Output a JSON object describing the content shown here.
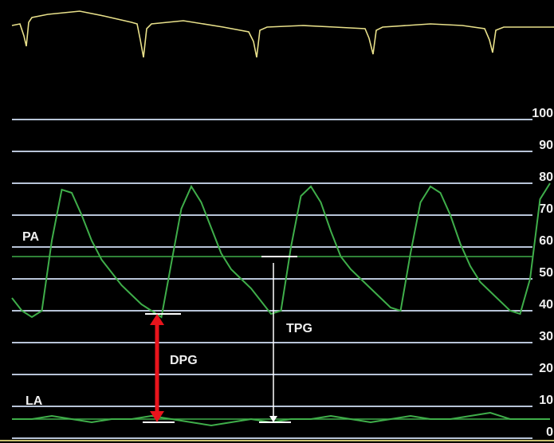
{
  "chart_data": {
    "type": "line",
    "ylim": [
      0,
      100
    ],
    "yticks": [
      0,
      10,
      20,
      30,
      40,
      50,
      60,
      70,
      80,
      90,
      100
    ],
    "grid": true,
    "series": [
      {
        "name": "PA",
        "color": "#3fae4a",
        "mean": 57,
        "values": [
          44,
          40,
          38,
          40,
          62,
          78,
          77,
          70,
          62,
          56,
          52,
          48,
          45,
          42,
          40,
          38,
          55,
          72,
          79,
          74,
          66,
          58,
          53,
          50,
          47,
          43,
          39,
          40,
          60,
          76,
          79,
          74,
          65,
          57,
          53,
          50,
          47,
          44,
          41,
          40,
          58,
          74,
          79,
          77,
          70,
          61,
          54,
          49,
          46,
          43,
          40,
          39,
          50,
          75,
          80
        ]
      },
      {
        "name": "LA",
        "color": "#3fae4a",
        "mean": 6,
        "values": [
          6,
          6,
          7,
          6,
          5,
          6,
          6,
          7,
          6,
          5,
          4,
          5,
          6,
          5,
          6,
          6,
          7,
          6,
          5,
          6,
          7,
          6,
          6,
          7,
          8,
          6,
          6,
          6
        ]
      }
    ],
    "annotations": [
      {
        "text": "DPG",
        "from": 39,
        "to": 5,
        "color": "#e8141c"
      },
      {
        "text": "TPG",
        "from": 57,
        "to": 5,
        "color": "#ffffff"
      }
    ]
  }
}
